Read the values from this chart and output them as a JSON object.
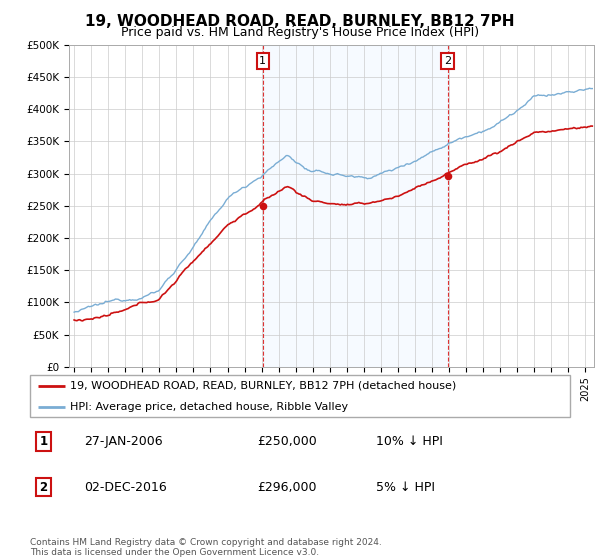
{
  "title": "19, WOODHEAD ROAD, READ, BURNLEY, BB12 7PH",
  "subtitle": "Price paid vs. HM Land Registry's House Price Index (HPI)",
  "title_fontsize": 11,
  "subtitle_fontsize": 9,
  "ylabel_ticks": [
    "£0",
    "£50K",
    "£100K",
    "£150K",
    "£200K",
    "£250K",
    "£300K",
    "£350K",
    "£400K",
    "£450K",
    "£500K"
  ],
  "ytick_values": [
    0,
    50000,
    100000,
    150000,
    200000,
    250000,
    300000,
    350000,
    400000,
    450000,
    500000
  ],
  "ylim": [
    0,
    500000
  ],
  "xlim_start": 1994.7,
  "xlim_end": 2025.5,
  "hpi_color": "#7aadd4",
  "price_color": "#cc1111",
  "grid_color": "#cccccc",
  "bg_color": "#ffffff",
  "shade_color": "#ddeeff",
  "sale1_x": 2006.07,
  "sale1_y": 250000,
  "sale2_x": 2016.92,
  "sale2_y": 296000,
  "legend_line1": "19, WOODHEAD ROAD, READ, BURNLEY, BB12 7PH (detached house)",
  "legend_line2": "HPI: Average price, detached house, Ribble Valley",
  "footer": "Contains HM Land Registry data © Crown copyright and database right 2024.\nThis data is licensed under the Open Government Licence v3.0.",
  "table_rows": [
    {
      "num": "1",
      "date": "27-JAN-2006",
      "price": "£250,000",
      "pct": "10% ↓ HPI"
    },
    {
      "num": "2",
      "date": "02-DEC-2016",
      "price": "£296,000",
      "pct": "5% ↓ HPI"
    }
  ]
}
